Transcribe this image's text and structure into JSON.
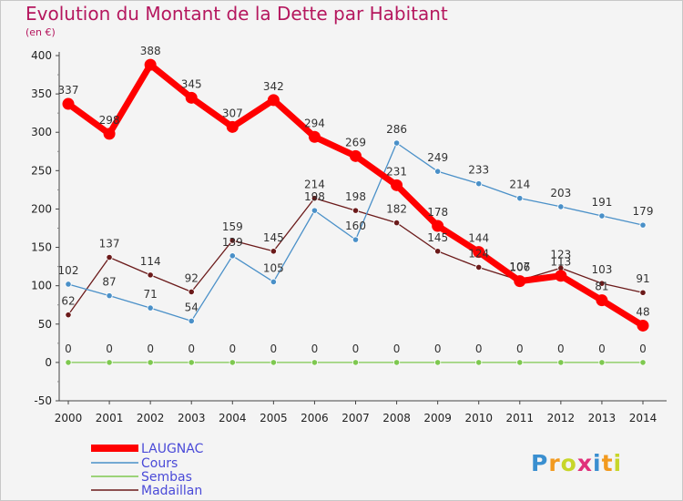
{
  "title": "Evolution du Montant de la Dette par Habitant",
  "unit": "(en €)",
  "logo": {
    "text": "Proxiti",
    "colors": [
      "#3a8fd0",
      "#f29a1f",
      "#c7d62a",
      "#e0307a"
    ]
  },
  "chart_data": {
    "type": "line",
    "x": [
      "2000",
      "2001",
      "2002",
      "2003",
      "2004",
      "2005",
      "2006",
      "2007",
      "2008",
      "2009",
      "2010",
      "2011",
      "2012",
      "2013",
      "2014"
    ],
    "ylim": [
      -50,
      400
    ],
    "yticks": [
      -50,
      0,
      50,
      100,
      150,
      200,
      250,
      300,
      350,
      400
    ],
    "grid": false,
    "legend": "bottom-left",
    "series": [
      {
        "name": "LAUGNAC",
        "color": "#ff0000",
        "values": [
          337,
          298,
          388,
          345,
          307,
          342,
          294,
          269,
          231,
          178,
          144,
          106,
          113,
          81,
          48
        ]
      },
      {
        "name": "Cours",
        "color": "#4a90c8",
        "values": [
          102,
          87,
          71,
          54,
          139,
          105,
          198,
          160,
          286,
          249,
          233,
          214,
          203,
          191,
          179
        ]
      },
      {
        "name": "Sembas",
        "color": "#7ec850",
        "values": [
          0,
          0,
          0,
          0,
          0,
          0,
          0,
          0,
          0,
          0,
          0,
          0,
          0,
          0,
          0
        ]
      },
      {
        "name": "Madaillan",
        "color": "#6b1a1a",
        "values": [
          62,
          137,
          114,
          92,
          159,
          145,
          214,
          198,
          182,
          145,
          124,
          107,
          123,
          103,
          91
        ]
      }
    ]
  }
}
